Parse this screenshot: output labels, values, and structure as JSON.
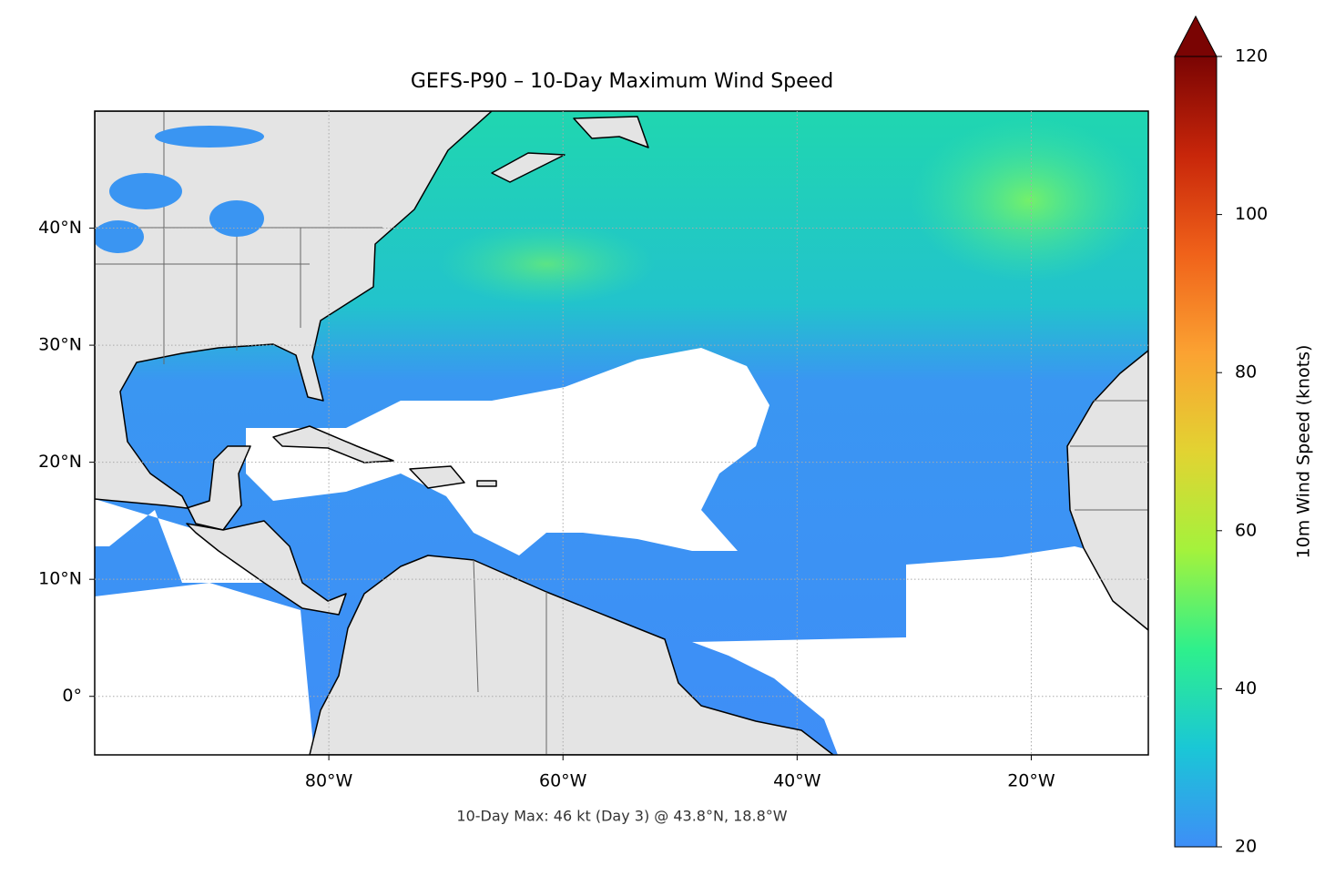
{
  "chart_data": {
    "type": "map",
    "title": "GEFS-P90 – 10-Day Maximum Wind Speed",
    "annotation": "10-Day Max: 46 kt (Day 3) @ 43.8°N, 18.8°W",
    "xlim": [
      -100,
      -10
    ],
    "xticks": [
      {
        "value": -80,
        "label": "80°W"
      },
      {
        "value": -60,
        "label": "60°W"
      },
      {
        "value": -40,
        "label": "40°W"
      },
      {
        "value": -20,
        "label": "20°W"
      }
    ],
    "ylim": [
      -5,
      50
    ],
    "yticks": [
      {
        "value": 0,
        "label": "0°"
      },
      {
        "value": 10,
        "label": "10°N"
      },
      {
        "value": 20,
        "label": "20°N"
      },
      {
        "value": 30,
        "label": "30°N"
      },
      {
        "value": 40,
        "label": "40°N"
      }
    ],
    "grid": true,
    "colorbar": {
      "label": "10m Wind Speed (knots)",
      "lim": [
        20,
        120
      ],
      "ticks": [
        20,
        40,
        60,
        80,
        100,
        120
      ],
      "extend": "max",
      "colors": [
        "#3e8ef7",
        "#1ac7d6",
        "#2ef08c",
        "#a4f23c",
        "#e2d332",
        "#fba232",
        "#f0621a",
        "#c8260a",
        "#7a0403"
      ]
    }
  }
}
